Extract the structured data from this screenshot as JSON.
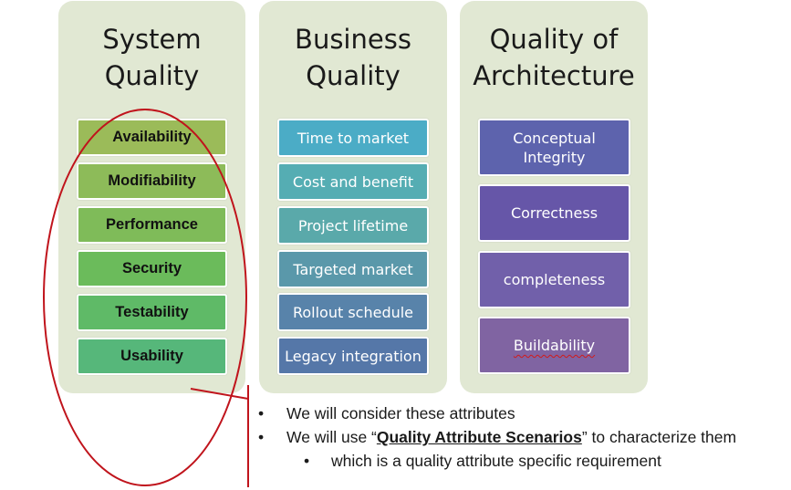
{
  "columns": {
    "system": {
      "title": "System\nQuality",
      "items": [
        "Availability",
        "Modifiability",
        "Performance",
        "Security",
        "Testability",
        "Usability"
      ],
      "colors": [
        "#9bbb59",
        "#8dbb59",
        "#7fbb59",
        "#6bbb5b",
        "#5fba67",
        "#56b77a"
      ]
    },
    "business": {
      "title": "Business\nQuality",
      "items": [
        "Time to market",
        "Cost and benefit",
        "Project lifetime",
        "Targeted market",
        "Rollout schedule",
        "Legacy integration"
      ],
      "colors": [
        "#4bacc6",
        "#55adb3",
        "#5aa9aa",
        "#5a98aa",
        "#5883aa",
        "#5577a8"
      ]
    },
    "architecture": {
      "title": "Quality of\nArchitecture",
      "items": [
        "Conceptual\nIntegrity",
        "Correctness",
        "completeness",
        "Buildability"
      ],
      "colors": [
        "#5d63ad",
        "#6656a8",
        "#7160aa",
        "#8064a2"
      ]
    }
  },
  "notes": {
    "bullet_1": "We will consider these attributes",
    "bullet_2_before": "We will use “",
    "bullet_2_emph": "Quality Attribute Scenarios",
    "bullet_2_after": "” to characterize them",
    "bullet_3": "which is a quality attribute specific  requirement",
    "bullet_symbol": "•"
  },
  "accent_color": "#c0141c"
}
